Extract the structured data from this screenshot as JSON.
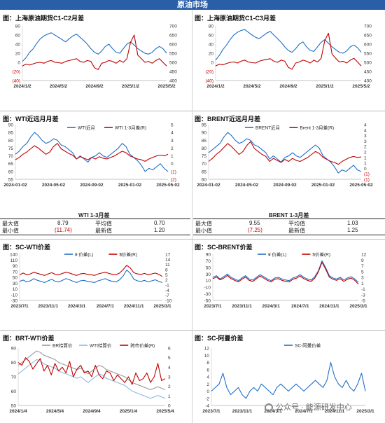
{
  "header": {
    "title": "原油市场"
  },
  "panels": [
    {
      "title": "图：上海原油期货C1-C2月差"
    },
    {
      "title": "图：上海原油期货C1-C3月差"
    },
    {
      "title": "图：WTI近远月月差"
    },
    {
      "title": "图：BRENT近远月月差"
    },
    {
      "title": "图：SC-WTI价差"
    },
    {
      "title": "图：SC-BRENT价差"
    },
    {
      "title": "图：BRT-WTI价差"
    },
    {
      "title": "图：SC-阿曼价差"
    }
  ],
  "stats": {
    "wti": {
      "title": "WTI 1-3月差",
      "max_label": "最大值",
      "max": "8.79",
      "avg_label": "平均值",
      "avg": "0.70",
      "min_label": "最小值",
      "min": "(11.74)",
      "latest_label": "最新值",
      "latest": "1.20"
    },
    "brent": {
      "title": "BRENT 1-3月差",
      "max_label": "最大值",
      "max": "9.55",
      "avg_label": "平均值",
      "avg": "1.03",
      "min_label": "最小值",
      "min": "(7.25)",
      "latest_label": "最新值",
      "latest": "1.25"
    }
  },
  "watermark": {
    "text": "公众号 · 能源研发中心"
  },
  "colors": {
    "blue": "#1f6fc8",
    "red": "#c00000",
    "gray": "#9a9a9a",
    "lightblue": "#8fb8e0",
    "banner": "#2a5fa8"
  },
  "chart_data": [
    {
      "type": "line",
      "name": "sc-c1c2",
      "x_ticks": [
        "2024/1/2",
        "2024/5/2",
        "2024/9/2",
        "2025/1/2",
        "2025/5/2"
      ],
      "y_left": {
        "min": -40,
        "max": 80,
        "ticks": [
          "(40)",
          "(20)",
          "0",
          "20",
          "40",
          "60",
          "80"
        ]
      },
      "y_right": {
        "min": 400,
        "max": 700,
        "ticks": [
          "400",
          "450",
          "500",
          "550",
          "600",
          "650",
          "700"
        ]
      },
      "series": [
        {
          "axis": "left",
          "color": "#1f6fc8",
          "values": [
            2,
            10,
            22,
            30,
            42,
            52,
            58,
            62,
            65,
            60,
            55,
            50,
            45,
            52,
            58,
            62,
            55,
            48,
            40,
            30,
            22,
            18,
            25,
            35,
            40,
            30,
            22,
            20,
            30,
            40,
            45,
            38,
            30,
            25,
            20,
            18,
            22,
            30,
            35,
            30,
            20
          ]
        },
        {
          "axis": "right",
          "color": "#c00000",
          "values": [
            480,
            490,
            485,
            492,
            498,
            500,
            495,
            505,
            510,
            500,
            498,
            495,
            505,
            510,
            515,
            520,
            505,
            500,
            510,
            505,
            470,
            460,
            495,
            500,
            510,
            505,
            495,
            510,
            500,
            520,
            610,
            650,
            540,
            520,
            500,
            505,
            495,
            510,
            520,
            500,
            480
          ]
        }
      ]
    },
    {
      "type": "line",
      "name": "sc-c1c3",
      "x_ticks": [
        "2024/1/2",
        "2024/5/2",
        "2024/9/2",
        "2025/1/2",
        "2025/5/2"
      ],
      "y_left": {
        "min": -40,
        "max": 80,
        "ticks": [
          "(40)",
          "(20)",
          "0",
          "20",
          "40",
          "60",
          "80"
        ]
      },
      "y_right": {
        "min": 400,
        "max": 700,
        "ticks": [
          "400",
          "450",
          "500",
          "550",
          "600",
          "650",
          "700"
        ]
      },
      "series": [
        {
          "axis": "left",
          "color": "#1f6fc8",
          "values": [
            5,
            15,
            28,
            38,
            50,
            60,
            66,
            70,
            72,
            66,
            60,
            55,
            52,
            58,
            64,
            68,
            60,
            52,
            44,
            34,
            26,
            22,
            30,
            40,
            45,
            34,
            26,
            24,
            34,
            44,
            50,
            42,
            34,
            28,
            22,
            20,
            25,
            34,
            38,
            32,
            22
          ]
        },
        {
          "axis": "right",
          "color": "#c00000",
          "values": [
            480,
            490,
            486,
            494,
            500,
            502,
            496,
            506,
            512,
            502,
            498,
            496,
            506,
            512,
            516,
            520,
            506,
            500,
            512,
            506,
            472,
            462,
            496,
            502,
            512,
            506,
            496,
            512,
            502,
            522,
            620,
            660,
            545,
            522,
            502,
            506,
            496,
            512,
            522,
            502,
            480
          ]
        }
      ]
    },
    {
      "type": "line",
      "name": "wti-spread",
      "x_ticks": [
        "2024-01-02",
        "2024-05-02",
        "2024-09-02",
        "2025-01-02",
        "2025-05-02"
      ],
      "y_left": {
        "min": 55,
        "max": 90,
        "ticks": [
          "55",
          "60",
          "65",
          "70",
          "75",
          "80",
          "85",
          "90"
        ]
      },
      "y_right": {
        "min": -2,
        "max": 5,
        "ticks": [
          "(2)",
          "(1)",
          "0",
          "1",
          "2",
          "3",
          "4",
          "5"
        ]
      },
      "legend": [
        "WTI近月",
        "WTI 1-3月差(R)"
      ],
      "series": [
        {
          "axis": "left",
          "name": "WTI近月",
          "color": "#1f6fc8",
          "values": [
            71,
            73,
            76,
            78,
            82,
            85,
            83,
            80,
            78,
            79,
            81,
            80,
            77,
            76,
            74,
            72,
            68,
            70,
            68,
            66,
            69,
            70,
            72,
            70,
            69,
            71,
            73,
            75,
            78,
            76,
            71,
            69,
            67,
            64,
            60,
            62,
            61,
            63,
            65,
            62,
            60
          ]
        },
        {
          "axis": "right",
          "name": "WTI 1-3月差(R)",
          "color": "#c00000",
          "values": [
            0.5,
            0.8,
            1.2,
            1.5,
            1.9,
            2.3,
            2.0,
            1.6,
            1.2,
            1.5,
            2.2,
            2.6,
            1.9,
            1.6,
            1.3,
            1.1,
            0.6,
            0.9,
            0.7,
            0.5,
            0.8,
            0.6,
            0.9,
            0.7,
            0.6,
            0.8,
            1.0,
            1.3,
            1.6,
            1.4,
            1.0,
            0.8,
            0.6,
            0.5,
            0.3,
            0.6,
            0.8,
            1.0,
            1.1,
            1.0,
            1.2
          ]
        }
      ]
    },
    {
      "type": "line",
      "name": "brent-spread",
      "x_ticks": [
        "2024-01-02",
        "2024-05-02",
        "2024-09-02",
        "2025-01-02",
        "2025-05-02"
      ],
      "y_left": {
        "min": 60,
        "max": 95,
        "ticks": [
          "60",
          "65",
          "70",
          "75",
          "80",
          "85",
          "90",
          "95"
        ]
      },
      "y_right": {
        "min": -1,
        "max": 4.5,
        "ticks": [
          "(1)",
          "(1)",
          "0",
          "1",
          "1",
          "2",
          "2",
          "3",
          "3",
          "4",
          "4"
        ]
      },
      "legend": [
        "BRENT近月",
        "Brent 1-3月差(R)"
      ],
      "series": [
        {
          "axis": "left",
          "name": "BRENT近月",
          "color": "#1f6fc8",
          "values": [
            77,
            79,
            81,
            83,
            87,
            90,
            88,
            85,
            83,
            84,
            86,
            85,
            82,
            81,
            79,
            77,
            73,
            75,
            73,
            71,
            74,
            75,
            77,
            75,
            74,
            76,
            78,
            80,
            82,
            80,
            75,
            73,
            71,
            68,
            64,
            66,
            65,
            67,
            69,
            66,
            65
          ]
        },
        {
          "axis": "right",
          "name": "Brent 1-3月差(R)",
          "color": "#c00000",
          "values": [
            0.8,
            1.1,
            1.5,
            1.8,
            2.2,
            2.6,
            2.3,
            1.9,
            1.5,
            1.8,
            2.4,
            2.8,
            2.1,
            1.8,
            1.5,
            1.3,
            0.8,
            1.1,
            0.9,
            0.7,
            1.0,
            0.8,
            1.1,
            0.9,
            0.8,
            1.0,
            1.2,
            1.5,
            1.8,
            1.6,
            1.2,
            1.0,
            0.8,
            0.7,
            0.5,
            0.8,
            1.0,
            1.2,
            1.3,
            1.2,
            1.25
          ]
        }
      ]
    },
    {
      "type": "line",
      "name": "sc-wti",
      "x_ticks": [
        "2023/7/1",
        "2023/11/1",
        "2024/3/1",
        "2024/7/1",
        "2024/11/1",
        "2025/3/1"
      ],
      "y_left": {
        "min": -30,
        "max": 140,
        "ticks": [
          "-30",
          "-10",
          "10",
          "30",
          "50",
          "70",
          "90",
          "110",
          "140"
        ]
      },
      "y_right": {
        "min": -10,
        "max": 17,
        "ticks": [
          "-10",
          "-7",
          "-4",
          "-1",
          "2",
          "5",
          "8",
          "11",
          "14",
          "17"
        ]
      },
      "legend": [
        "¥ 价差(L)",
        "$价差(R)"
      ],
      "series": [
        {
          "axis": "left",
          "name": "¥ 价差(L)",
          "color": "#1f6fc8",
          "values": [
            40,
            45,
            38,
            42,
            50,
            44,
            40,
            36,
            42,
            48,
            40,
            38,
            44,
            50,
            46,
            40,
            36,
            42,
            44,
            40,
            38,
            36,
            42,
            46,
            50,
            44,
            40,
            38,
            46,
            60,
            82,
            70,
            48,
            42,
            40,
            44,
            38,
            42,
            46,
            40,
            36
          ]
        },
        {
          "axis": "right",
          "name": "$价差(R)",
          "color": "#c00000",
          "values": [
            5,
            6,
            5,
            5.5,
            6.5,
            5.8,
            5.2,
            4.6,
            5.5,
            6.2,
            5.2,
            5,
            5.8,
            6.5,
            6,
            5.2,
            4.6,
            5.5,
            5.8,
            5.2,
            5,
            4.6,
            5.5,
            6,
            6.5,
            5.8,
            5.2,
            5,
            6,
            8,
            10.5,
            9,
            6.2,
            5.5,
            5.2,
            5.8,
            5,
            5.5,
            6,
            5.2,
            4
          ]
        }
      ]
    },
    {
      "type": "line",
      "name": "sc-brent",
      "x_ticks": [
        "2023/7/1",
        "2023/11/1",
        "2024/3/1",
        "2024/7/1",
        "2024/11/1",
        "2025/3/1"
      ],
      "y_left": {
        "min": -50,
        "max": 90,
        "ticks": [
          "-50",
          "-30",
          "-10",
          "10",
          "30",
          "50",
          "70",
          "90"
        ]
      },
      "y_right": {
        "min": -5,
        "max": 12,
        "ticks": [
          "-5",
          "-3",
          "-1",
          "1",
          "3",
          "5",
          "7",
          "9",
          "12"
        ]
      },
      "legend": [
        "¥ 价差(L)",
        "$价差(R)"
      ],
      "series": [
        {
          "axis": "left",
          "name": "¥ 价差(L)",
          "color": "#1f6fc8",
          "values": [
            20,
            25,
            15,
            22,
            30,
            20,
            15,
            10,
            18,
            25,
            15,
            12,
            20,
            28,
            22,
            15,
            10,
            18,
            20,
            15,
            12,
            10,
            18,
            22,
            28,
            20,
            15,
            12,
            22,
            40,
            70,
            50,
            25,
            18,
            15,
            20,
            12,
            18,
            22,
            15,
            5
          ]
        },
        {
          "axis": "right",
          "name": "$价差(R)",
          "color": "#c00000",
          "values": [
            3,
            3.6,
            2.6,
            3.2,
            4.2,
            3,
            2.4,
            1.8,
            2.8,
            3.6,
            2.4,
            2,
            3,
            4,
            3.2,
            2.4,
            1.8,
            2.8,
            3,
            2.4,
            2,
            1.8,
            2.8,
            3.2,
            4,
            3,
            2.4,
            2,
            3.2,
            5.5,
            9,
            6.5,
            3.6,
            2.8,
            2.4,
            3,
            2,
            2.8,
            3.2,
            2.4,
            1
          ]
        }
      ]
    },
    {
      "type": "line",
      "name": "brt-wti",
      "x_ticks": [
        "2024/1/4",
        "2024/5/4",
        "2024/9/4",
        "2025/1/4",
        "2025/5/4"
      ],
      "y_left": {
        "min": 50,
        "max": 90,
        "ticks": [
          "50",
          "60",
          "70",
          "80",
          "90"
        ]
      },
      "y_right": {
        "min": 0,
        "max": 6,
        "ticks": [
          "0",
          "1",
          "2",
          "3",
          "4",
          "5",
          "6"
        ]
      },
      "legend": [
        "BR结算价",
        "WTI结算价",
        "跨市价差(R)"
      ],
      "series": [
        {
          "axis": "left",
          "name": "BR结算价",
          "color": "#9a9a9a",
          "values": [
            78,
            80,
            82,
            84,
            86,
            88,
            87,
            85,
            84,
            83,
            82,
            80,
            79,
            78,
            77,
            76,
            75,
            76,
            74,
            72,
            74,
            76,
            78,
            77,
            75,
            74,
            73,
            72,
            71,
            70,
            68,
            66,
            65,
            64,
            63,
            62,
            61,
            62,
            63,
            62,
            61
          ]
        },
        {
          "axis": "left",
          "name": "WTI结算价",
          "color": "#8fb8e0",
          "values": [
            72,
            74,
            76,
            78,
            80,
            82,
            81,
            79,
            78,
            77,
            76,
            74,
            73,
            72,
            71,
            70,
            69,
            70,
            68,
            66,
            68,
            70,
            72,
            71,
            69,
            68,
            67,
            66,
            65,
            64,
            62,
            60,
            59,
            58,
            57,
            56,
            55,
            56,
            57,
            56,
            55
          ]
        },
        {
          "axis": "right",
          "name": "跨市价差(R)",
          "color": "#c00000",
          "values": [
            4.5,
            4.2,
            5,
            4.6,
            3.8,
            4.4,
            4.9,
            3.6,
            4.2,
            3.2,
            4.4,
            3.6,
            4,
            3.4,
            4.6,
            3,
            3.8,
            4.2,
            3.4,
            3.6,
            3,
            4.2,
            3.2,
            2.8,
            3.6,
            3.4,
            2.6,
            3.2,
            2.8,
            2.4,
            3,
            2.2,
            3.4,
            2.6,
            2.8,
            3.4,
            2.4,
            3,
            4.4,
            2.6,
            2.8
          ]
        }
      ]
    },
    {
      "type": "line",
      "name": "sc-oman",
      "x_ticks": [
        "2023/7/1",
        "2023/11/1",
        "2024/3/1",
        "2024/7/1",
        "2024/11/1",
        "2025/3/1"
      ],
      "y_left": {
        "min": -4,
        "max": 12,
        "ticks": [
          "-4",
          "-2",
          "0",
          "2",
          "4",
          "6",
          "8",
          "10",
          "12"
        ]
      },
      "legend": [
        "SC-阿曼价差"
      ],
      "series": [
        {
          "axis": "left",
          "name": "SC-阿曼价差",
          "color": "#1f6fc8",
          "values": [
            0,
            1,
            2,
            5,
            1,
            -1,
            0,
            1,
            -1,
            -2,
            0,
            1,
            0,
            2,
            1,
            0,
            -1,
            1,
            2,
            1,
            0,
            1,
            2,
            1,
            0,
            1,
            2,
            3,
            2,
            1,
            3,
            8,
            4,
            2,
            1,
            3,
            1,
            0,
            2,
            5,
            0
          ]
        }
      ]
    }
  ]
}
